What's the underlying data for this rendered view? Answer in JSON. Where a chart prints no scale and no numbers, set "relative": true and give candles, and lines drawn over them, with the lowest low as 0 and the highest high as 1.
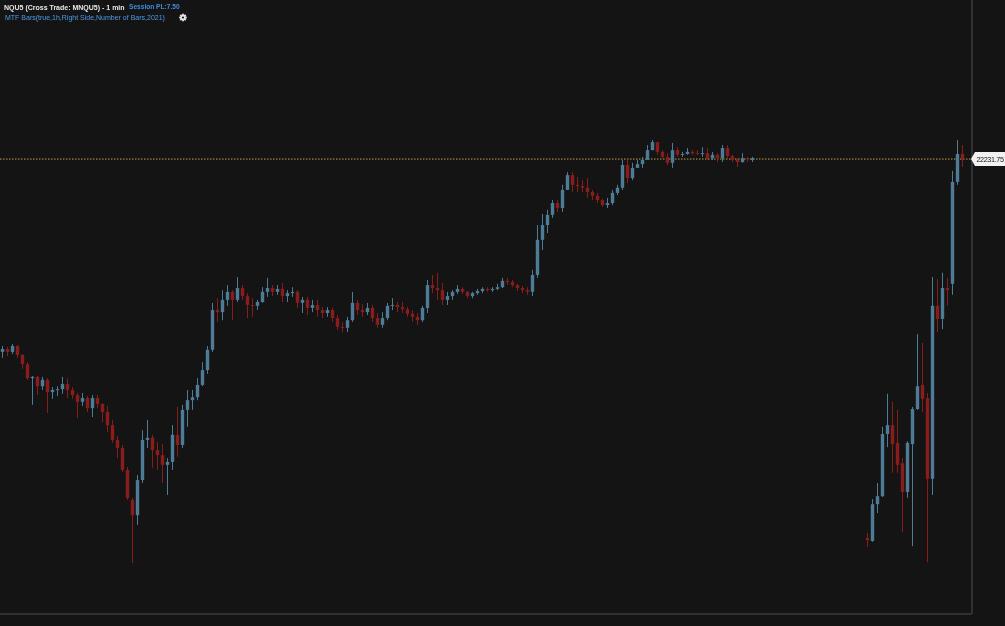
{
  "chart_data": {
    "type": "candlestick",
    "title": "NQU5 (Cross Trade: MNQU5) - 1 min",
    "subtitle": "MTF Bars(true,1h,Right Side,Number of Bars,2021)",
    "annotations": [
      "Session PL:7.50",
      "22231.75"
    ],
    "relative": true,
    "categories": [
      null,
      null,
      null,
      null,
      null,
      null,
      null,
      null,
      null,
      null,
      null,
      null,
      null,
      null,
      null,
      null,
      null,
      null,
      null,
      null,
      null,
      null,
      null,
      null,
      null,
      null,
      null,
      null,
      null,
      null,
      null,
      null,
      null,
      null,
      null,
      null,
      null,
      null,
      null,
      null,
      null,
      null,
      null,
      null,
      null,
      null,
      null,
      null,
      null,
      null,
      null,
      null,
      null,
      null,
      null,
      null,
      null,
      null,
      null,
      null,
      null,
      null,
      null,
      null,
      null,
      null,
      null,
      null,
      null,
      null,
      null,
      null,
      null,
      null,
      null,
      null,
      null,
      null,
      null,
      null,
      null,
      null,
      null,
      null,
      null,
      null,
      null,
      null,
      null,
      null,
      null,
      null,
      null,
      null,
      null,
      null,
      null,
      null,
      null,
      null,
      null,
      null,
      null,
      null,
      null,
      null,
      null,
      null,
      null,
      null,
      null,
      null,
      null,
      null,
      null,
      null,
      null,
      null,
      null,
      null,
      null,
      null,
      null,
      null,
      null,
      null,
      null,
      null,
      null,
      null,
      null,
      null,
      null,
      null,
      null,
      null,
      null,
      null,
      null,
      null,
      null,
      null,
      null,
      null,
      null,
      null,
      null,
      null,
      null,
      null,
      null,
      null,
      null,
      null,
      null,
      null,
      null,
      null,
      null,
      null,
      null,
      null,
      null,
      null,
      null,
      null,
      null,
      null,
      null,
      null,
      null,
      null,
      null,
      null,
      null,
      null,
      null,
      null,
      null,
      null,
      null,
      null,
      null,
      null,
      null,
      null,
      null,
      null,
      null,
      null,
      null,
      null,
      null,
      null
    ],
    "series": [
      {
        "ohlc": [
          [
            0.499,
            0.513,
            0.485,
            0.506
          ],
          [
            0.506,
            0.511,
            0.489,
            0.499
          ],
          [
            0.499,
            0.518,
            0.494,
            0.513
          ],
          [
            0.513,
            0.515,
            0.485,
            0.492
          ],
          [
            0.492,
            0.494,
            0.459,
            0.47
          ],
          [
            0.47,
            0.475,
            0.433,
            0.437
          ],
          [
            0.437,
            0.442,
            0.374,
            0.44
          ],
          [
            0.44,
            0.442,
            0.397,
            0.418
          ],
          [
            0.418,
            0.44,
            0.409,
            0.433
          ],
          [
            0.433,
            0.437,
            0.355,
            0.404
          ],
          [
            0.404,
            0.416,
            0.388,
            0.409
          ],
          [
            0.409,
            0.418,
            0.395,
            0.411
          ],
          [
            0.411,
            0.44,
            0.4,
            0.423
          ],
          [
            0.423,
            0.437,
            0.39,
            0.409
          ],
          [
            0.409,
            0.416,
            0.388,
            0.397
          ],
          [
            0.397,
            0.402,
            0.343,
            0.381
          ],
          [
            0.381,
            0.402,
            0.371,
            0.39
          ],
          [
            0.39,
            0.395,
            0.357,
            0.366
          ],
          [
            0.366,
            0.397,
            0.345,
            0.39
          ],
          [
            0.39,
            0.397,
            0.366,
            0.376
          ],
          [
            0.376,
            0.378,
            0.333,
            0.357
          ],
          [
            0.357,
            0.371,
            0.31,
            0.326
          ],
          [
            0.326,
            0.338,
            0.284,
            0.291
          ],
          [
            0.291,
            0.3,
            0.248,
            0.272
          ],
          [
            0.272,
            0.279,
            0.215,
            0.22
          ],
          [
            0.22,
            0.227,
            0.149,
            0.154
          ],
          [
            0.149,
            0.154,
            0,
            0.113
          ],
          [
            0.113,
            0.208,
            0.09,
            0.196
          ],
          [
            0.196,
            0.314,
            0.189,
            0.291
          ],
          [
            0.291,
            0.338,
            0.272,
            0.296
          ],
          [
            0.296,
            0.303,
            0.225,
            0.267
          ],
          [
            0.267,
            0.286,
            0.22,
            0.255
          ],
          [
            0.255,
            0.281,
            0.189,
            0.232
          ],
          [
            0.232,
            0.248,
            0.161,
            0.239
          ],
          [
            0.239,
            0.326,
            0.22,
            0.303
          ],
          [
            0.303,
            0.369,
            0.251,
            0.279
          ],
          [
            0.279,
            0.374,
            0.272,
            0.362
          ],
          [
            0.362,
            0.409,
            0.322,
            0.385
          ],
          [
            0.385,
            0.409,
            0.362,
            0.392
          ],
          [
            0.392,
            0.437,
            0.385,
            0.421
          ],
          [
            0.421,
            0.475,
            0.418,
            0.456
          ],
          [
            0.456,
            0.513,
            0.447,
            0.504
          ],
          [
            0.504,
            0.615,
            0.499,
            0.598
          ],
          [
            0.598,
            0.626,
            0.57,
            0.593
          ],
          [
            0.593,
            0.645,
            0.574,
            0.622
          ],
          [
            0.622,
            0.657,
            0.608,
            0.641
          ],
          [
            0.641,
            0.645,
            0.574,
            0.622
          ],
          [
            0.622,
            0.676,
            0.617,
            0.65
          ],
          [
            0.65,
            0.657,
            0.622,
            0.631
          ],
          [
            0.631,
            0.638,
            0.579,
            0.61
          ],
          [
            0.61,
            0.626,
            0.582,
            0.608
          ],
          [
            0.608,
            0.622,
            0.598,
            0.617
          ],
          [
            0.617,
            0.652,
            0.615,
            0.641
          ],
          [
            0.641,
            0.674,
            0.629,
            0.65
          ],
          [
            0.65,
            0.657,
            0.631,
            0.641
          ],
          [
            0.641,
            0.657,
            0.634,
            0.648
          ],
          [
            0.648,
            0.662,
            0.617,
            0.631
          ],
          [
            0.631,
            0.645,
            0.617,
            0.638
          ],
          [
            0.638,
            0.652,
            0.629,
            0.641
          ],
          [
            0.641,
            0.645,
            0.603,
            0.615
          ],
          [
            0.615,
            0.629,
            0.591,
            0.622
          ],
          [
            0.622,
            0.629,
            0.586,
            0.603
          ],
          [
            0.603,
            0.622,
            0.593,
            0.61
          ],
          [
            0.61,
            0.622,
            0.582,
            0.598
          ],
          [
            0.598,
            0.605,
            0.579,
            0.591
          ],
          [
            0.591,
            0.605,
            0.582,
            0.598
          ],
          [
            0.598,
            0.603,
            0.57,
            0.579
          ],
          [
            0.579,
            0.586,
            0.551,
            0.558
          ],
          [
            0.558,
            0.57,
            0.546,
            0.556
          ],
          [
            0.556,
            0.582,
            0.546,
            0.574
          ],
          [
            0.574,
            0.641,
            0.57,
            0.615
          ],
          [
            0.615,
            0.622,
            0.586,
            0.598
          ],
          [
            0.598,
            0.612,
            0.582,
            0.593
          ],
          [
            0.593,
            0.615,
            0.586,
            0.603
          ],
          [
            0.603,
            0.61,
            0.57,
            0.579
          ],
          [
            0.579,
            0.591,
            0.556,
            0.563
          ],
          [
            0.563,
            0.593,
            0.556,
            0.579
          ],
          [
            0.579,
            0.615,
            0.574,
            0.608
          ],
          [
            0.608,
            0.626,
            0.598,
            0.61
          ],
          [
            0.61,
            0.617,
            0.593,
            0.605
          ],
          [
            0.605,
            0.617,
            0.591,
            0.6
          ],
          [
            0.6,
            0.605,
            0.582,
            0.589
          ],
          [
            0.589,
            0.598,
            0.57,
            0.582
          ],
          [
            0.582,
            0.591,
            0.563,
            0.574
          ],
          [
            0.574,
            0.608,
            0.57,
            0.603
          ],
          [
            0.603,
            0.669,
            0.591,
            0.657
          ],
          [
            0.657,
            0.681,
            0.638,
            0.65
          ],
          [
            0.65,
            0.686,
            0.622,
            0.645
          ],
          [
            0.645,
            0.662,
            0.61,
            0.622
          ],
          [
            0.622,
            0.641,
            0.61,
            0.631
          ],
          [
            0.631,
            0.645,
            0.622,
            0.641
          ],
          [
            0.641,
            0.657,
            0.636,
            0.648
          ],
          [
            0.648,
            0.652,
            0.636,
            0.641
          ],
          [
            0.641,
            0.643,
            0.626,
            0.631
          ],
          [
            0.631,
            0.641,
            0.626,
            0.638
          ],
          [
            0.638,
            0.648,
            0.634,
            0.643
          ],
          [
            0.643,
            0.652,
            0.638,
            0.648
          ],
          [
            0.648,
            0.652,
            0.641,
            0.645
          ],
          [
            0.645,
            0.652,
            0.641,
            0.648
          ],
          [
            0.648,
            0.66,
            0.645,
            0.652
          ],
          [
            0.652,
            0.674,
            0.65,
            0.667
          ],
          [
            0.667,
            0.674,
            0.657,
            0.664
          ],
          [
            0.664,
            0.669,
            0.652,
            0.657
          ],
          [
            0.657,
            0.66,
            0.643,
            0.65
          ],
          [
            0.65,
            0.655,
            0.638,
            0.645
          ],
          [
            0.645,
            0.652,
            0.634,
            0.641
          ],
          [
            0.641,
            0.693,
            0.631,
            0.681
          ],
          [
            0.681,
            0.799,
            0.674,
            0.764
          ],
          [
            0.764,
            0.825,
            0.74,
            0.799
          ],
          [
            0.799,
            0.835,
            0.78,
            0.823
          ],
          [
            0.823,
            0.858,
            0.816,
            0.851
          ],
          [
            0.851,
            0.858,
            0.83,
            0.839
          ],
          [
            0.839,
            0.894,
            0.83,
            0.882
          ],
          [
            0.882,
            0.924,
            0.882,
            0.917
          ],
          [
            0.917,
            0.924,
            0.877,
            0.894
          ],
          [
            0.894,
            0.913,
            0.877,
            0.891
          ],
          [
            0.891,
            0.905,
            0.877,
            0.887
          ],
          [
            0.887,
            0.91,
            0.863,
            0.877
          ],
          [
            0.877,
            0.882,
            0.858,
            0.868
          ],
          [
            0.868,
            0.875,
            0.851,
            0.858
          ],
          [
            0.858,
            0.861,
            0.842,
            0.846
          ],
          [
            0.846,
            0.863,
            0.839,
            0.851
          ],
          [
            0.851,
            0.882,
            0.846,
            0.875
          ],
          [
            0.875,
            0.894,
            0.87,
            0.887
          ],
          [
            0.887,
            0.953,
            0.882,
            0.941
          ],
          [
            0.941,
            0.953,
            0.898,
            0.91
          ],
          [
            0.91,
            0.946,
            0.905,
            0.934
          ],
          [
            0.934,
            0.953,
            0.934,
            0.943
          ],
          [
            0.943,
            0.96,
            0.934,
            0.953
          ],
          [
            0.953,
            0.988,
            0.953,
            0.976
          ],
          [
            0.976,
            1,
            0.976,
            0.995
          ],
          [
            0.995,
            0.995,
            0.965,
            0.972
          ],
          [
            0.972,
            0.976,
            0.957,
            0.96
          ],
          [
            0.96,
            0.969,
            0.941,
            0.946
          ],
          [
            0.946,
            0.993,
            0.934,
            0.976
          ],
          [
            0.976,
            0.983,
            0.96,
            0.965
          ],
          [
            0.965,
            0.972,
            0.96,
            0.967
          ],
          [
            0.967,
            0.981,
            0.965,
            0.972
          ],
          [
            0.972,
            0.976,
            0.965,
            0.969
          ],
          [
            0.969,
            0.976,
            0.965,
            0.967
          ],
          [
            0.967,
            0.983,
            0.96,
            0.969
          ],
          [
            0.969,
            0.981,
            0.953,
            0.957
          ],
          [
            0.957,
            0.972,
            0.953,
            0.965
          ],
          [
            0.965,
            0.969,
            0.948,
            0.957
          ],
          [
            0.957,
            0.988,
            0.948,
            0.981
          ],
          [
            0.981,
            0.988,
            0.957,
            0.962
          ],
          [
            0.962,
            0.965,
            0.948,
            0.953
          ],
          [
            0.953,
            0.957,
            0.936,
            0.948
          ],
          [
            0.948,
            0.969,
            0.946,
            0.957
          ],
          [
            0.957,
            0.96,
            0.948,
            0.955
          ],
          [
            0.953,
            0.96,
            0.948,
            0.957
          ],
          null,
          null,
          null,
          null,
          null,
          null,
          null,
          null,
          null,
          null,
          null,
          null,
          null,
          null,
          null,
          null,
          null,
          null,
          null,
          null,
          null,
          null,
          [
            0.059,
            0.071,
            0.038,
            0.054
          ],
          [
            0.052,
            0.151,
            0.05,
            0.139
          ],
          [
            0.139,
            0.189,
            0.118,
            0.158
          ],
          [
            0.158,
            0.322,
            0.156,
            0.305
          ],
          [
            0.305,
            0.4,
            0.274,
            0.326
          ],
          [
            0.326,
            0.381,
            0.213,
            0.281
          ],
          [
            0.284,
            0.362,
            0.213,
            0.232
          ],
          [
            0.236,
            0.248,
            0.073,
            0.168
          ],
          [
            0.168,
            0.288,
            0.154,
            0.284
          ],
          [
            0.281,
            0.369,
            0.04,
            0.364
          ],
          [
            0.364,
            0.541,
            0.362,
            0.418
          ],
          [
            0.421,
            0.52,
            0.357,
            0.388
          ],
          [
            0.39,
            0.402,
            0.002,
            0.199
          ],
          [
            0.199,
            0.676,
            0.161,
            0.608
          ],
          [
            0.608,
            0.671,
            0.546,
            0.577
          ],
          [
            0.577,
            0.686,
            0.553,
            0.65
          ],
          [
            0.65,
            0.674,
            0.608,
            0.645
          ],
          [
            0.66,
            0.927,
            0.634,
            0.901
          ],
          [
            0.901,
            1,
            0.894,
            0.967
          ],
          [
            0.967,
            0.988,
            0.936,
            0.955
          ],
          null
        ],
        "colors": [
          "#4e7b96",
          "#8a1c1c",
          "#4e7b96",
          "#8a1c1c",
          "#8a1c1c",
          "#8a1c1c",
          "#4e7b96",
          "#8a1c1c",
          "#4e7b96",
          "#8a1c1c",
          "#4e7b96",
          "#4e7b96",
          "#4e7b96",
          "#8a1c1c",
          "#8a1c1c",
          "#8a1c1c",
          "#4e7b96",
          "#8a1c1c",
          "#4e7b96",
          "#8a1c1c",
          "#8a1c1c",
          "#8a1c1c",
          "#8a1c1c",
          "#8a1c1c",
          "#8a1c1c",
          "#8a1c1c",
          "#8a1c1c",
          "#4e7b96",
          "#4e7b96",
          "#4e7b96",
          "#8a1c1c",
          "#8a1c1c",
          "#8a1c1c",
          "#4e7b96",
          "#4e7b96",
          "#8a1c1c",
          "#4e7b96",
          "#4e7b96",
          "#4e7b96",
          "#4e7b96",
          "#4e7b96",
          "#4e7b96",
          "#4e7b96",
          "#8a1c1c",
          "#4e7b96",
          "#4e7b96",
          "#8a1c1c",
          "#4e7b96",
          "#8a1c1c",
          "#8a1c1c",
          "#8a1c1c",
          "#4e7b96",
          "#4e7b96",
          "#4e7b96",
          "#8a1c1c",
          "#4e7b96",
          "#8a1c1c",
          "#4e7b96",
          "#4e7b96",
          "#8a1c1c",
          "#4e7b96",
          "#8a1c1c",
          "#4e7b96",
          "#8a1c1c",
          "#8a1c1c",
          "#4e7b96",
          "#8a1c1c",
          "#8a1c1c",
          "#8a1c1c",
          "#4e7b96",
          "#4e7b96",
          "#8a1c1c",
          "#8a1c1c",
          "#4e7b96",
          "#8a1c1c",
          "#8a1c1c",
          "#4e7b96",
          "#4e7b96",
          "#4e7b96",
          "#8a1c1c",
          "#8a1c1c",
          "#8a1c1c",
          "#8a1c1c",
          "#8a1c1c",
          "#4e7b96",
          "#4e7b96",
          "#8a1c1c",
          "#8a1c1c",
          "#8a1c1c",
          "#4e7b96",
          "#4e7b96",
          "#4e7b96",
          "#8a1c1c",
          "#8a1c1c",
          "#4e7b96",
          "#4e7b96",
          "#4e7b96",
          "#8a1c1c",
          "#4e7b96",
          "#4e7b96",
          "#4e7b96",
          "#8a1c1c",
          "#8a1c1c",
          "#8a1c1c",
          "#8a1c1c",
          "#8a1c1c",
          "#4e7b96",
          "#4e7b96",
          "#4e7b96",
          "#4e7b96",
          "#4e7b96",
          "#8a1c1c",
          "#4e7b96",
          "#4e7b96",
          "#8a1c1c",
          "#8a1c1c",
          "#8a1c1c",
          "#8a1c1c",
          "#8a1c1c",
          "#8a1c1c",
          "#8a1c1c",
          "#4e7b96",
          "#4e7b96",
          "#4e7b96",
          "#4e7b96",
          "#8a1c1c",
          "#4e7b96",
          "#4e7b96",
          "#4e7b96",
          "#4e7b96",
          "#4e7b96",
          "#8a1c1c",
          "#8a1c1c",
          "#8a1c1c",
          "#4e7b96",
          "#8a1c1c",
          "#4e7b96",
          "#4e7b96",
          "#8a1c1c",
          "#8a1c1c",
          "#4e7b96",
          "#8a1c1c",
          "#4e7b96",
          "#8a1c1c",
          "#4e7b96",
          "#8a1c1c",
          "#8a1c1c",
          "#8a1c1c",
          "#4e7b96",
          "#8a1c1c",
          "#4e7b96",
          null,
          null,
          null,
          null,
          null,
          null,
          null,
          null,
          null,
          null,
          null,
          null,
          null,
          null,
          null,
          null,
          null,
          null,
          null,
          null,
          null,
          null,
          "#8a1c1c",
          "#4e7b96",
          "#4e7b96",
          "#4e7b96",
          "#4e7b96",
          "#8a1c1c",
          "#8a1c1c",
          "#8a1c1c",
          "#4e7b96",
          "#4e7b96",
          "#4e7b96",
          "#8a1c1c",
          "#8a1c1c",
          "#4e7b96",
          "#8a1c1c",
          "#4e7b96",
          "#8a1c1c",
          "#4e7b96",
          "#4e7b96",
          "#8a1c1c",
          null
        ]
      }
    ],
    "ref_lines": [
      {
        "axis": "y",
        "value": 0.955,
        "color": "#c4a24a",
        "line_style": "dotted"
      }
    ]
  }
}
